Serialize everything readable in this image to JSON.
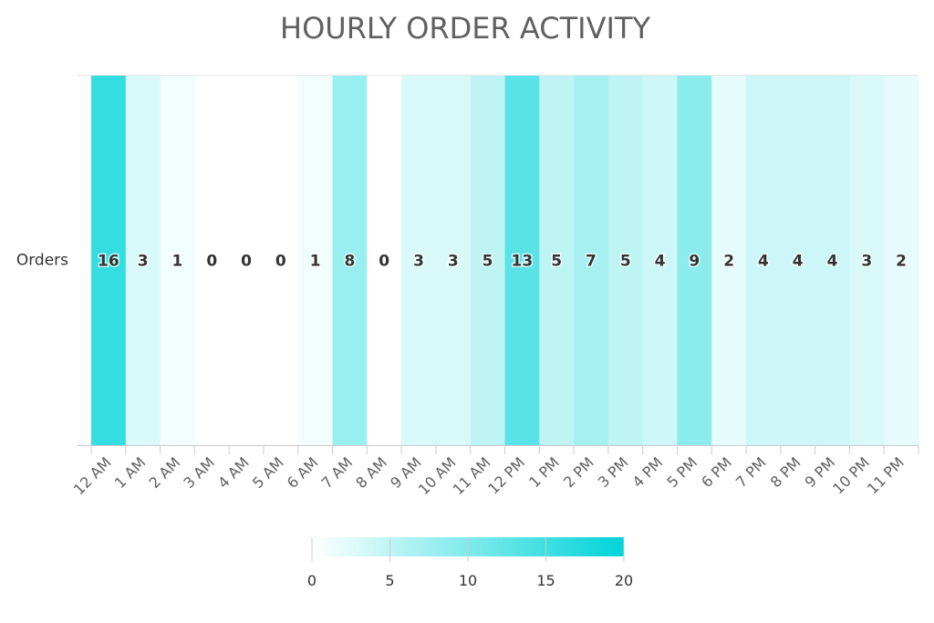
{
  "chart_data": {
    "type": "heatmap",
    "title": "HOURLY ORDER ACTIVITY",
    "y_categories": [
      "Orders"
    ],
    "x_categories": [
      "12 AM",
      "1 AM",
      "2 AM",
      "3 AM",
      "4 AM",
      "5 AM",
      "6 AM",
      "7 AM",
      "8 AM",
      "9 AM",
      "10 AM",
      "11 AM",
      "12 PM",
      "1 PM",
      "2 PM",
      "3 PM",
      "4 PM",
      "5 PM",
      "6 PM",
      "7 PM",
      "8 PM",
      "9 PM",
      "10 PM",
      "11 PM"
    ],
    "values": [
      16,
      3,
      1,
      0,
      0,
      0,
      1,
      8,
      0,
      3,
      3,
      5,
      13,
      5,
      7,
      5,
      4,
      9,
      2,
      4,
      4,
      4,
      3,
      2
    ],
    "color_scale": {
      "min": 0,
      "max": 20,
      "min_color": "#ffffff",
      "max_color": "#00d4d8"
    },
    "legend": {
      "ticks": [
        0,
        5,
        10,
        15,
        20
      ],
      "position": "bottom-center"
    }
  }
}
